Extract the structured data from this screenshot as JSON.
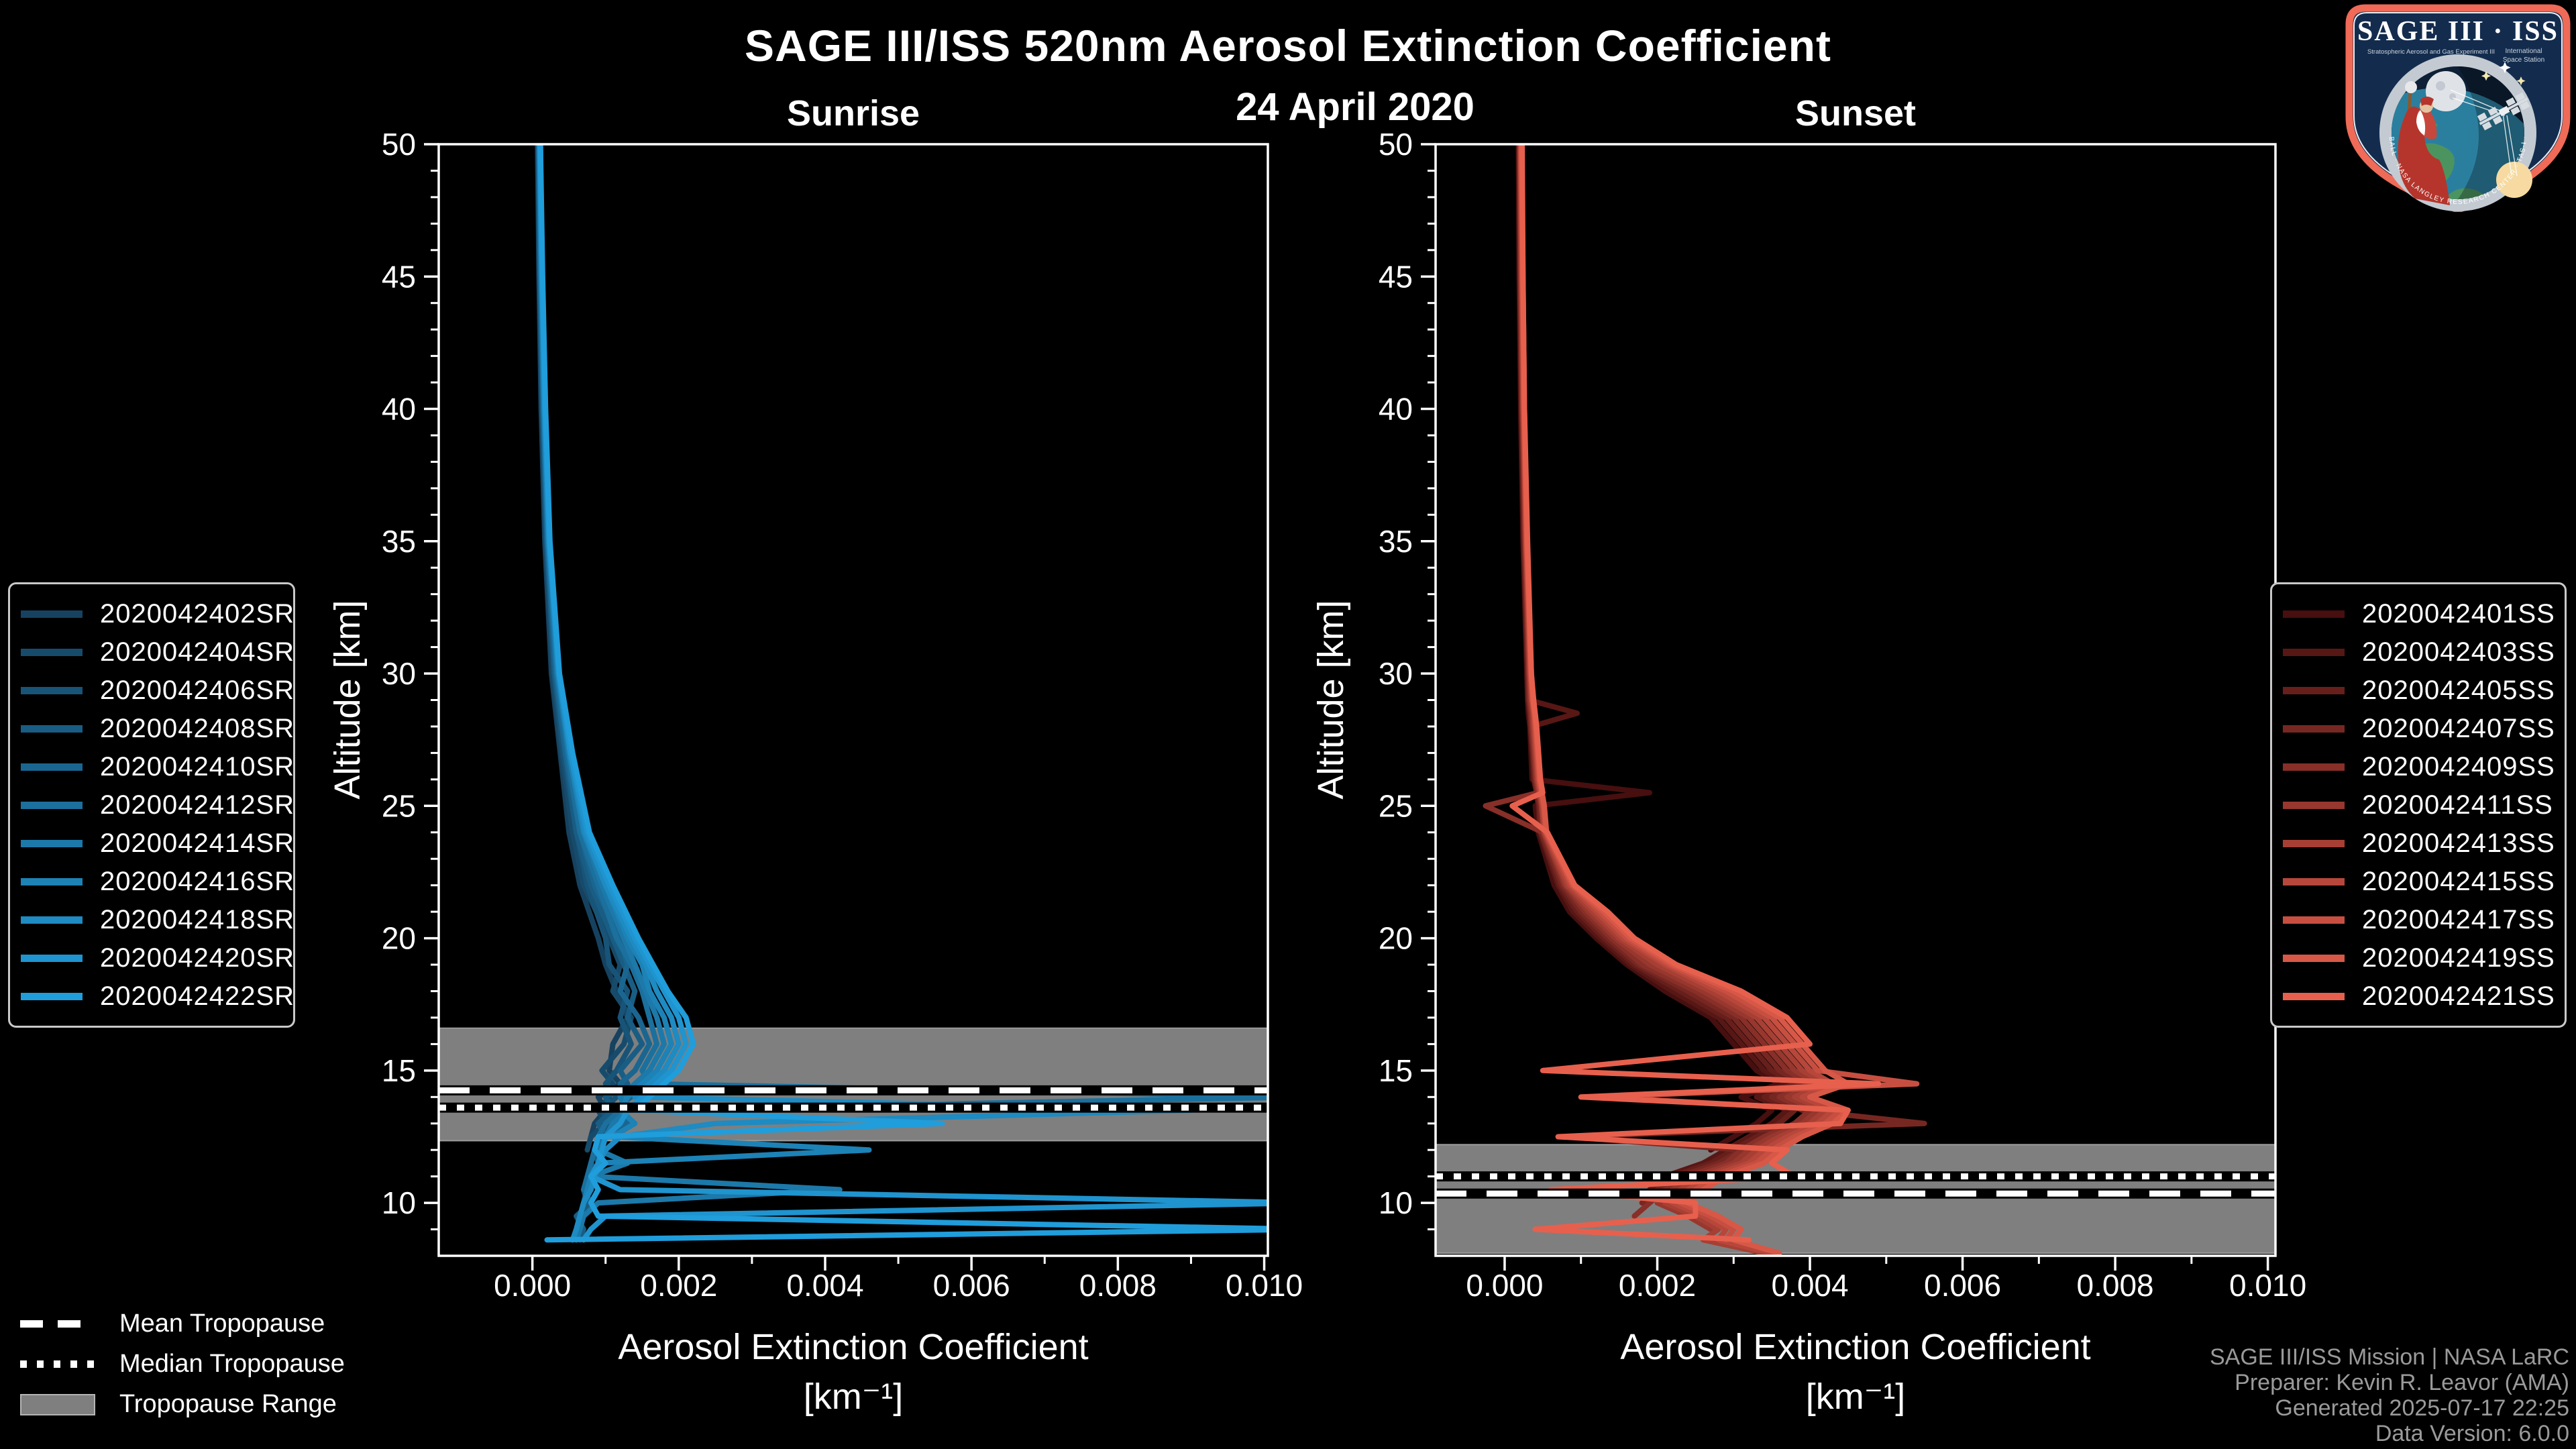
{
  "header": {
    "title": "SAGE III/ISS 520nm Aerosol Extinction Coefficient",
    "date": "24 April 2020",
    "panel_titles": [
      "Sunrise",
      "Sunset"
    ]
  },
  "axis": {
    "xlabel": "Aerosol Extinction Coefficient",
    "xunit": "[km⁻¹]",
    "ylabel": "Altitude [km]",
    "x_tick_labels": [
      "0.000",
      "0.002",
      "0.004",
      "0.006",
      "0.008",
      "0.010"
    ],
    "y_tick_labels": [
      "10",
      "15",
      "20",
      "25",
      "30",
      "35",
      "40",
      "45",
      "50"
    ]
  },
  "tropopause_legend": {
    "mean": "Mean Tropopause",
    "median": "Median Tropopause",
    "range": "Tropopause Range"
  },
  "credits": {
    "line1": "SAGE III/ISS Mission | NASA LaRC",
    "line2": "Preparer: Kevin R. Leavor (AMA)",
    "line3": "Generated 2025-07-17 22:25",
    "line4": "Data Version: 6.0.0"
  },
  "logo": {
    "title": "SAGE III · ISS",
    "sub1": "Stratospheric Aerosol and Gas Experiment III",
    "sub2": "International",
    "sub3": "Space Station",
    "ring_text": "BALL · NASA LANGLEY RESEARCH CENTER · TAS-I · ESA"
  },
  "colors": {
    "background": "#000000",
    "axis": "#ffffff",
    "tropopause_band": "#7f7f7f",
    "tropopause_line": "#ffffff",
    "credits_text": "#9a9a9a",
    "logo_border": "#ef6a57"
  },
  "chart_data": [
    {
      "type": "line",
      "title": "Sunrise",
      "xlabel": "Aerosol Extinction Coefficient [km⁻¹]",
      "ylabel": "Altitude [km]",
      "xlim": [
        -0.00128,
        0.01005
      ],
      "ylim": [
        8,
        50
      ],
      "x_ticks": [
        0,
        0.002,
        0.004,
        0.006,
        0.008,
        0.01
      ],
      "y_ticks": [
        10,
        15,
        20,
        25,
        30,
        35,
        40,
        45,
        50
      ],
      "grid": false,
      "legend_position": "outside-left",
      "tropopause": {
        "mean_km": 14.25,
        "median_km": 13.6,
        "range_km": [
          12.35,
          16.6
        ]
      },
      "alts_km": [
        50,
        45,
        40,
        35,
        30,
        27,
        24,
        22,
        20,
        19,
        18,
        17,
        16,
        15,
        14.5,
        14,
        13.5,
        13,
        12.5,
        12,
        11.5,
        11,
        10.5,
        10,
        9.5,
        9,
        8.6
      ],
      "series": [
        {
          "name": "2020042402SR",
          "color": "#16425f",
          "values": [
            7e-05,
            9e-05,
            0.00012,
            0.00017,
            0.00026,
            0.00038,
            0.0005,
            0.00065,
            0.0009,
            0.001,
            0.00115,
            0.0013,
            0.0011,
            0.00105,
            0.0012,
            0.0009,
            0.001,
            0.00085,
            0.0008,
            null,
            null,
            null,
            null,
            null,
            null,
            null,
            null
          ]
        },
        {
          "name": "2020042404SR",
          "color": "#174b6b",
          "values": [
            8e-05,
            0.0001,
            0.00013,
            0.00018,
            0.00028,
            0.0004,
            0.00055,
            0.0007,
            0.00105,
            0.0012,
            0.0011,
            0.00135,
            0.00125,
            0.00095,
            0.0011,
            0.00105,
            0.0009,
            0.001,
            0.0008,
            0.00075,
            null,
            null,
            null,
            null,
            null,
            null,
            null
          ]
        },
        {
          "name": "2020042406SR",
          "color": "#185478",
          "values": [
            8e-05,
            0.0001,
            0.00014,
            0.00019,
            0.0003,
            0.00042,
            0.0006,
            0.00075,
            0.001,
            0.00105,
            0.0013,
            0.0012,
            0.00135,
            0.00115,
            0.001,
            0.00115,
            0.00095,
            0.00105,
            0.0009,
            0.00085,
            0.0008,
            0.0009,
            0.0007,
            0.00075,
            0.00065,
            0.0006,
            0.00055
          ]
        },
        {
          "name": "2020042408SR",
          "color": "#195d84",
          "values": [
            9e-05,
            0.00011,
            0.00014,
            0.0002,
            0.0003,
            0.00045,
            0.0006,
            0.0008,
            0.0011,
            0.00125,
            0.0014,
            0.0013,
            0.0015,
            0.0012,
            0.0013,
            0.001,
            0.0011,
            0.0009,
            0.001,
            0.00085,
            0.0009,
            0.0008,
            0.0007,
            0.0008,
            0.0006,
            0.0007,
            0.00065
          ]
        },
        {
          "name": "2020042410SR",
          "color": "#1a6691",
          "values": [
            9e-05,
            0.00011,
            0.00015,
            0.0002,
            0.00032,
            0.00045,
            0.00065,
            0.00085,
            0.0012,
            0.0013,
            0.0012,
            0.00145,
            0.0016,
            0.0014,
            0.0012,
            0.00135,
            0.0011,
            0.0013,
            0.0009,
            null,
            null,
            null,
            null,
            null,
            null,
            null,
            null
          ]
        },
        {
          "name": "2020042412SR",
          "color": "#1b709d",
          "values": [
            9e-05,
            0.00012,
            0.00015,
            0.00021,
            0.00033,
            0.00048,
            0.00065,
            0.0009,
            0.00115,
            0.00135,
            0.0015,
            0.0016,
            0.0017,
            0.0015,
            0.0016,
            0.0105,
            0.0012,
            0.001,
            0.0009,
            0.00085,
            0.0008,
            0.00075,
            0.0007,
            null,
            null,
            null,
            null
          ]
        },
        {
          "name": "2020042414SR",
          "color": "#1c79a9",
          "values": [
            0.0001,
            0.00012,
            0.00016,
            0.00022,
            0.00034,
            0.0005,
            0.0007,
            0.00095,
            0.00125,
            0.0014,
            0.00155,
            0.0017,
            0.0018,
            0.0016,
            0.0014,
            0.0012,
            0.0013,
            0.0011,
            0.001,
            0.0009,
            0.0013,
            0.0008,
            0.0042,
            0.0009,
            0.0007,
            0.00065,
            0.0006
          ]
        },
        {
          "name": "2020042416SR",
          "color": "#1d82b6",
          "values": [
            0.0001,
            0.00013,
            0.00016,
            0.00022,
            0.00035,
            0.0005,
            0.0007,
            0.001,
            0.0013,
            0.0015,
            0.0016,
            0.0018,
            0.0019,
            0.0017,
            0.0015,
            0.0013,
            0.0012,
            0.0014,
            0.0011,
            0.0046,
            0.0009,
            0.0008,
            0.00075,
            0.0007,
            0.00065,
            0.0006,
            null
          ]
        },
        {
          "name": "2020042418SR",
          "color": "#1e8bc2",
          "values": [
            0.0001,
            0.00013,
            0.00017,
            0.00023,
            0.00036,
            0.00052,
            0.00072,
            0.001,
            0.00135,
            0.00155,
            0.0017,
            0.0019,
            0.002,
            0.0018,
            0.0016,
            0.0014,
            0.009,
            0.0025,
            0.0012,
            0.001,
            0.0009,
            0.00085,
            0.0008,
            0.0007,
            0.00065,
            0.0006,
            0.00055
          ]
        },
        {
          "name": "2020042420SR",
          "color": "#1f94cf",
          "values": [
            0.00011,
            0.00013,
            0.00017,
            0.00023,
            0.00036,
            0.00052,
            0.00075,
            0.00105,
            0.0014,
            0.0016,
            0.0018,
            0.002,
            0.0021,
            0.0019,
            0.0017,
            0.0015,
            0.0013,
            0.0012,
            0.001,
            0.00095,
            0.0009,
            0.0008,
            0.0012,
            0.0106,
            0.001,
            0.0008,
            0.0007
          ]
        },
        {
          "name": "2020042422SR",
          "color": "#209ddb",
          "values": [
            0.00011,
            0.00014,
            0.00018,
            0.00024,
            0.00037,
            0.00055,
            0.00078,
            0.0011,
            0.00145,
            0.00165,
            0.00185,
            0.0021,
            0.0022,
            0.002,
            0.0018,
            0.0016,
            0.0014,
            0.0056,
            0.0009,
            0.00085,
            0.001,
            0.0008,
            0.0009,
            0.0008,
            0.0009,
            0.0106,
            0.0002
          ]
        }
      ]
    },
    {
      "type": "line",
      "title": "Sunset",
      "xlabel": "Aerosol Extinction Coefficient [km⁻¹]",
      "ylabel": "Altitude [km]",
      "xlim": [
        -0.000905,
        0.0101
      ],
      "ylim": [
        8,
        50
      ],
      "x_ticks": [
        0,
        0.002,
        0.004,
        0.006,
        0.008,
        0.01
      ],
      "y_ticks": [
        10,
        15,
        20,
        25,
        30,
        35,
        40,
        45,
        50
      ],
      "grid": false,
      "legend_position": "outside-right",
      "tropopause": {
        "mean_km": 10.35,
        "median_km": 11.0,
        "range_km": [
          8.1,
          12.2
        ]
      },
      "alts_km": [
        50,
        45,
        40,
        35,
        30,
        29,
        28.5,
        28,
        26,
        25.5,
        25,
        24,
        22,
        21,
        20,
        19,
        18,
        17,
        16,
        15,
        14.5,
        14,
        13.5,
        13,
        12.5,
        12,
        11.5,
        11,
        10.5,
        10,
        9.5,
        9,
        8.6,
        8.1
      ],
      "series": [
        {
          "name": "2020042401SS",
          "color": "#470f0f",
          "values": [
            0.00018,
            0.00019,
            0.00021,
            0.00024,
            0.00029,
            0.0003,
            0.00031,
            0.00033,
            0.00036,
            0.0019,
            0.0004,
            0.00044,
            0.00065,
            0.00085,
            0.0012,
            0.0016,
            0.0021,
            0.0027,
            0.003,
            0.0033,
            0.0036,
            0.0031,
            0.0035,
            0.0033,
            0.003,
            0.0027,
            null,
            null,
            null,
            null,
            null,
            null,
            null,
            null
          ]
        },
        {
          "name": "2020042403SS",
          "color": "#571715",
          "values": [
            0.00019,
            0.0002,
            0.00022,
            0.00025,
            0.0003,
            0.00032,
            0.00095,
            0.00035,
            0.00038,
            0.00042,
            0.00044,
            0.00046,
            0.0007,
            0.0009,
            0.00125,
            0.00165,
            0.0022,
            0.0028,
            0.0031,
            0.0034,
            0.0037,
            0.0033,
            0.0037,
            0.0035,
            0.0032,
            0.0029,
            0.0026,
            0.0021,
            null,
            null,
            null,
            null,
            null,
            null
          ]
        },
        {
          "name": "2020042405SS",
          "color": "#671f1b",
          "values": [
            0.00019,
            0.0002,
            0.00022,
            0.00025,
            0.0003,
            0.00031,
            0.00033,
            0.00034,
            0.00039,
            0.00042,
            0.00045,
            0.00047,
            0.00072,
            0.00095,
            0.0013,
            0.0017,
            0.0023,
            0.0029,
            0.0032,
            0.0035,
            0.0038,
            0.0034,
            0.0038,
            0.0036,
            0.0033,
            0.003,
            0.0027,
            0.0022,
            0.0019,
            null,
            null,
            null,
            null,
            null
          ]
        },
        {
          "name": "2020042407SS",
          "color": "#772722",
          "values": [
            0.0002,
            0.00021,
            0.00023,
            0.00026,
            0.00031,
            0.00032,
            0.00034,
            0.00035,
            0.0004,
            0.00043,
            0.00046,
            0.00048,
            0.00075,
            0.001,
            0.00135,
            0.00175,
            0.0024,
            0.003,
            0.0033,
            0.0036,
            0.0039,
            0.0035,
            0.0039,
            0.0055,
            0.0008,
            0.0031,
            0.0028,
            0.0023,
            0.002,
            0.0018,
            null,
            null,
            null,
            null
          ]
        },
        {
          "name": "2020042409SS",
          "color": "#872f28",
          "values": [
            0.0002,
            0.00021,
            0.00023,
            0.00027,
            0.00032,
            0.00033,
            0.00035,
            0.00036,
            0.00041,
            0.00044,
            -0.00025,
            0.0005,
            0.00078,
            0.00105,
            0.0014,
            0.0018,
            0.0025,
            0.0031,
            0.0034,
            0.0037,
            0.004,
            0.0036,
            0.004,
            0.0038,
            0.0034,
            0.0031,
            0.0029,
            0.0024,
            0.0021,
            0.0019,
            0.0017,
            null,
            null,
            null
          ]
        },
        {
          "name": "2020042411SS",
          "color": "#97372e",
          "values": [
            0.0002,
            0.00022,
            0.00024,
            0.00027,
            0.00032,
            0.00034,
            0.00036,
            0.00037,
            0.00042,
            0.00045,
            0.00048,
            0.00051,
            0.0008,
            0.0011,
            0.00145,
            0.0019,
            0.0026,
            0.0032,
            0.0035,
            0.0038,
            0.0041,
            0.0037,
            0.0041,
            0.0039,
            0.0035,
            0.0032,
            0.003,
            0.0025,
            0.0022,
            0.002,
            0.0024,
            0.0027,
            null,
            null
          ]
        },
        {
          "name": "2020042413SS",
          "color": "#a73f34",
          "values": [
            0.00021,
            0.00022,
            0.00024,
            0.00028,
            0.00033,
            0.00035,
            0.00037,
            0.00038,
            0.00043,
            0.00046,
            0.00049,
            0.00052,
            0.00082,
            0.00115,
            0.0015,
            0.002,
            0.0027,
            0.0033,
            0.0036,
            0.0039,
            0.0042,
            0.0038,
            0.0042,
            0.004,
            0.0036,
            0.0033,
            0.0031,
            0.0026,
            0.0023,
            0.0021,
            0.0025,
            0.0028,
            0.0026,
            0.0034
          ]
        },
        {
          "name": "2020042415SS",
          "color": "#b7473b",
          "values": [
            0.00021,
            0.00023,
            0.00025,
            0.00028,
            0.00034,
            0.00036,
            0.00038,
            0.00039,
            0.00044,
            0.00047,
            0.0005,
            0.00053,
            0.00085,
            0.0012,
            0.00155,
            0.0021,
            0.0028,
            0.0034,
            0.0037,
            0.004,
            0.0043,
            0.0039,
            0.0043,
            0.0041,
            0.0037,
            0.0034,
            0.0032,
            0.0027,
            0.0024,
            0.0022,
            0.0026,
            0.0029,
            0.0028,
            0.0035
          ]
        },
        {
          "name": "2020042417SS",
          "color": "#c74f41",
          "values": [
            0.00022,
            0.00023,
            0.00025,
            0.00029,
            0.00034,
            0.00036,
            0.00039,
            0.0004,
            0.00045,
            0.00048,
            0.00051,
            0.00054,
            0.00088,
            0.00125,
            0.0016,
            0.00215,
            0.0029,
            0.0035,
            0.0038,
            0.0041,
            0.0054,
            0.0012,
            0.0044,
            0.0042,
            0.0038,
            0.0035,
            0.0033,
            0.0028,
            0.0025,
            0.0023,
            0.0027,
            0.003,
            0.0029,
            null
          ]
        },
        {
          "name": "2020042419SS",
          "color": "#d75847",
          "values": [
            0.00022,
            0.00024,
            0.00026,
            0.00029,
            0.00035,
            0.00037,
            0.00039,
            0.00041,
            0.00046,
            0.00049,
            0.00052,
            0.00055,
            0.0009,
            0.0013,
            0.00165,
            0.0022,
            0.003,
            0.0036,
            0.0039,
            0.0042,
            0.0045,
            0.004,
            0.0045,
            0.0043,
            0.0039,
            0.0036,
            0.0034,
            0.0029,
            0.0026,
            0.0024,
            0.0028,
            0.0031,
            0.003,
            0.0036
          ]
        },
        {
          "name": "2020042421SS",
          "color": "#e7604d",
          "values": [
            0.00023,
            0.00024,
            0.00026,
            0.0003,
            0.00035,
            0.00038,
            0.0004,
            0.00042,
            0.00047,
            0.0005,
            0.0001,
            0.00056,
            0.00092,
            0.00135,
            0.0017,
            0.00225,
            0.0031,
            0.0037,
            0.004,
            0.0005,
            0.0049,
            0.001,
            0.0045,
            0.0044,
            0.0007,
            0.0037,
            0.0035,
            0.0038,
            0.0006,
            0.0025,
            0.0025,
            0.0004,
            0.0032,
            null
          ]
        }
      ]
    }
  ]
}
